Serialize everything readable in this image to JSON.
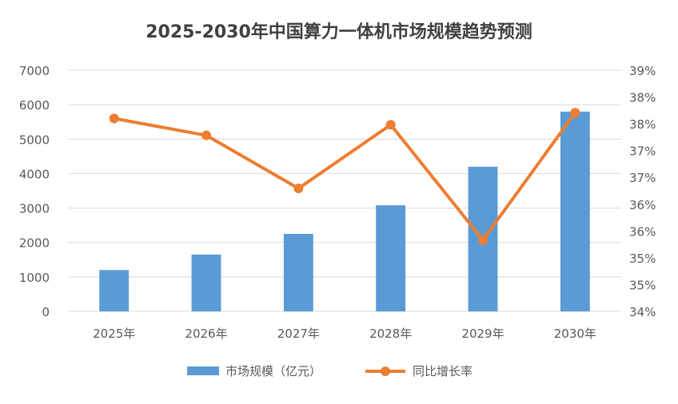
{
  "colors": {
    "bar": "#5b9bd5",
    "line": "#ed7d31",
    "grid": "#d9d9d9",
    "text": "#595959",
    "title": "#404040"
  },
  "chart_data": {
    "type": "bar",
    "title": "2025-2030年中国算力一体机市场规模趋势预测",
    "categories": [
      "2025年",
      "2026年",
      "2027年",
      "2028年",
      "2029年",
      "2030年"
    ],
    "series": [
      {
        "name": "市场规模（亿元）",
        "type": "bar",
        "axis": "left",
        "values": [
          1200,
          1650,
          2250,
          3080,
          4200,
          5800
        ]
      },
      {
        "name": "同比增长率",
        "type": "line",
        "axis": "right",
        "values": [
          0.38,
          0.3765,
          0.3655,
          0.3787,
          0.3548,
          0.3812
        ]
      }
    ],
    "y_left": {
      "min": 0,
      "max": 7000,
      "ticks": [
        "0",
        "1000",
        "2000",
        "3000",
        "4000",
        "5000",
        "6000",
        "7000"
      ]
    },
    "y_right": {
      "min": 0.34,
      "max": 0.39,
      "ticks": [
        "34%",
        "35%",
        "35%",
        "36%",
        "36%",
        "37%",
        "37%",
        "38%",
        "38%",
        "39%"
      ]
    },
    "grid": true,
    "legend": "bottom"
  }
}
